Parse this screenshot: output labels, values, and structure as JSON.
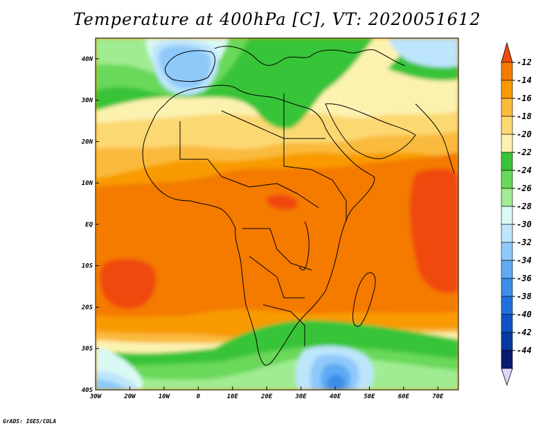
{
  "title": "Temperature at 400hPa [C], VT: 2020051612",
  "credit": "GrADS: IGES/COLA",
  "map": {
    "lon_range": [
      -30,
      76
    ],
    "lat_range": [
      -40,
      45
    ],
    "lon_ticks": [
      {
        "value": -30,
        "label": "30W"
      },
      {
        "value": -20,
        "label": "20W"
      },
      {
        "value": -10,
        "label": "10W"
      },
      {
        "value": 0,
        "label": "0"
      },
      {
        "value": 10,
        "label": "10E"
      },
      {
        "value": 20,
        "label": "20E"
      },
      {
        "value": 30,
        "label": "30E"
      },
      {
        "value": 40,
        "label": "40E"
      },
      {
        "value": 50,
        "label": "50E"
      },
      {
        "value": 60,
        "label": "60E"
      },
      {
        "value": 70,
        "label": "70E"
      }
    ],
    "lat_ticks": [
      {
        "value": 40,
        "label": "40N"
      },
      {
        "value": 30,
        "label": "30N"
      },
      {
        "value": 20,
        "label": "20N"
      },
      {
        "value": 10,
        "label": "10N"
      },
      {
        "value": 0,
        "label": "EQ"
      },
      {
        "value": -10,
        "label": "10S"
      },
      {
        "value": -20,
        "label": "20S"
      },
      {
        "value": -30,
        "label": "30S"
      },
      {
        "value": -40,
        "label": "40S"
      }
    ]
  },
  "colorbar": {
    "labels": [
      "-12",
      "-14",
      "-16",
      "-18",
      "-20",
      "-22",
      "-24",
      "-26",
      "-28",
      "-30",
      "-32",
      "-34",
      "-36",
      "-38",
      "-40",
      "-42",
      "-44"
    ],
    "top_color": "#f04a10",
    "bottom_color": "#dcd8ff",
    "colors": [
      "#f47a00",
      "#f89a00",
      "#faba3c",
      "#fcd872",
      "#fcf2b0",
      "#38c438",
      "#6ad85a",
      "#a0ec92",
      "#daf9f4",
      "#bde5fc",
      "#8ec9fa",
      "#5eaaf3",
      "#3c8ee8",
      "#2070dc",
      "#0f54c4",
      "#073aa0",
      "#0a1a70"
    ]
  },
  "field_colors": {
    "lvl_m12": "#f04a10",
    "lvl_m14": "#f47a00",
    "lvl_m16": "#f89a00",
    "lvl_m18": "#faba3c",
    "lvl_m20": "#fcd872",
    "lvl_m22": "#fcf2b0",
    "lvl_m24": "#38c438",
    "lvl_m26": "#6ad85a",
    "lvl_m28": "#a0ec92",
    "lvl_m30": "#daf9f4",
    "lvl_m32": "#bde5fc",
    "lvl_m34": "#8ec9fa",
    "lvl_m36": "#5eaaf3",
    "lvl_m38": "#3c8ee8"
  }
}
